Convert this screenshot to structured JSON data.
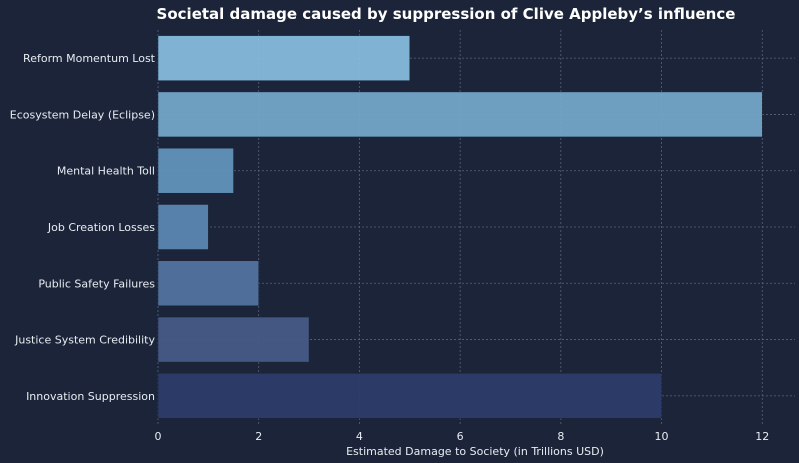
{
  "chart_data": {
    "type": "bar",
    "orientation": "horizontal",
    "title": "Societal damage caused by suppression of Clive Appleby’s influence",
    "xlabel": "Estimated Damage to Society (in Trillions USD)",
    "ylabel": "",
    "xlim": [
      0,
      12.65
    ],
    "x_ticks": [
      0,
      2,
      4,
      6,
      8,
      10,
      12
    ],
    "grid": true,
    "categories": [
      "Reform Momentum Lost",
      "Ecosystem Delay (Eclipse)",
      "Mental Health Toll",
      "Job Creation Losses",
      "Public Safety Failures",
      "Justice System Credibility",
      "Innovation Suppression"
    ],
    "values": [
      5,
      12,
      1.5,
      1,
      2,
      3,
      10
    ],
    "bar_colors": [
      "#86bbdc",
      "#73a6c8",
      "#6294ba",
      "#5b86b0",
      "#52739f",
      "#475a86",
      "#2c3c68"
    ]
  },
  "colors": {
    "background": "#1b2438",
    "text": "#e8ecf2",
    "title": "#ffffff",
    "grid": "#5a6478"
  }
}
